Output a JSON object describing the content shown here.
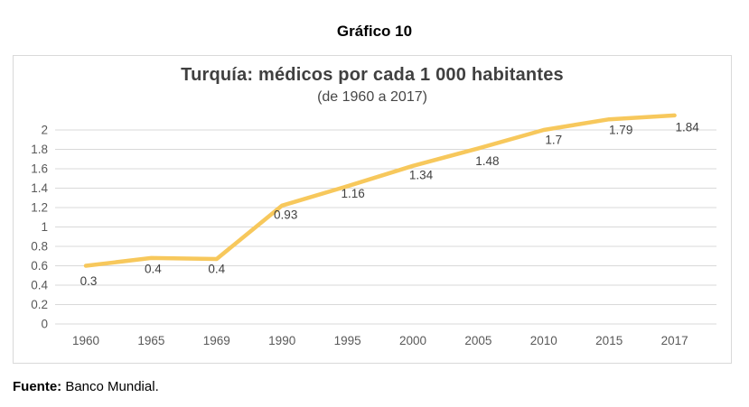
{
  "page": {
    "heading": "Gráfico 10",
    "source_label": "Fuente:",
    "source_text": " Banco Mundial."
  },
  "chart": {
    "title": "Turquía: médicos por cada 1 000 habitantes",
    "subtitle": "(de 1960 a 2017)"
  },
  "chart_data": {
    "type": "line",
    "title": "Turquía: médicos por cada 1 000 habitantes",
    "subtitle": "(de 1960 a 2017)",
    "categories": [
      "1960",
      "1965",
      "1969",
      "1990",
      "1995",
      "2000",
      "2005",
      "2010",
      "2015",
      "2017"
    ],
    "values": [
      0.3,
      0.4,
      0.4,
      0.93,
      1.16,
      1.34,
      1.48,
      1.7,
      1.79,
      1.84
    ],
    "data_labels": [
      "0.3",
      "0.4",
      "0.4",
      "0.93",
      "1.16",
      "1.34",
      "1.48",
      "1.7",
      "1.79",
      "1.84"
    ],
    "y_ticks": [
      "2",
      "1.8",
      "1.6",
      "1.4",
      "1.2",
      "1",
      "0.8",
      "0.6",
      "0.4",
      "0.2",
      "0"
    ],
    "ylim": [
      0,
      2
    ],
    "xlabel": "",
    "ylabel": "",
    "grid": "horizontal",
    "legend": "none",
    "line_color": "#F7C85C",
    "grid_color": "#D9D9D9",
    "axis_text_color": "#595959",
    "data_label_color": "#404040",
    "line_plotted_values_visual": [
      0.6,
      0.68,
      0.67,
      1.22,
      1.42,
      1.63,
      1.81,
      2.0,
      2.11,
      2.15
    ]
  }
}
